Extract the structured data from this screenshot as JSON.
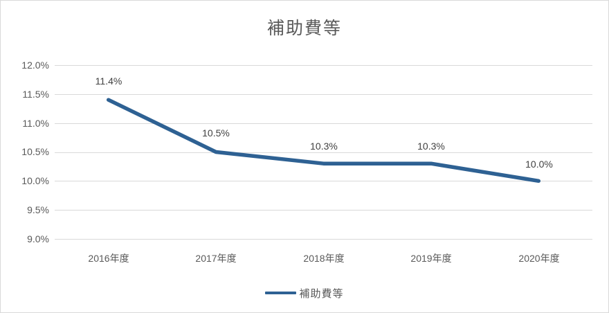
{
  "title": "補助費等",
  "chart_data": {
    "type": "line",
    "title": "補助費等",
    "categories": [
      "2016年度",
      "2017年度",
      "2018年度",
      "2019年度",
      "2020年度"
    ],
    "series": [
      {
        "name": "補助費等",
        "values": [
          11.4,
          10.5,
          10.3,
          10.3,
          10.0
        ],
        "color": "#2E6193"
      }
    ],
    "data_labels": [
      "11.4%",
      "10.5%",
      "10.3%",
      "10.3%",
      "10.0%"
    ],
    "ylim": [
      9.0,
      12.0
    ],
    "ytick_step": 0.5,
    "ytick_labels": [
      "12.0%",
      "11.5%",
      "11.0%",
      "10.5%",
      "10.0%",
      "9.5%",
      "9.0%"
    ],
    "grid": true,
    "legend": {
      "position": "bottom",
      "label": "補助費等"
    }
  },
  "colors": {
    "line": "#2E6193",
    "gridline": "#D9D9D9",
    "title_text": "#595959",
    "axis_text": "#595959",
    "data_label_text": "#404040",
    "border": "#D9D9D9",
    "background": "#FFFFFF"
  }
}
